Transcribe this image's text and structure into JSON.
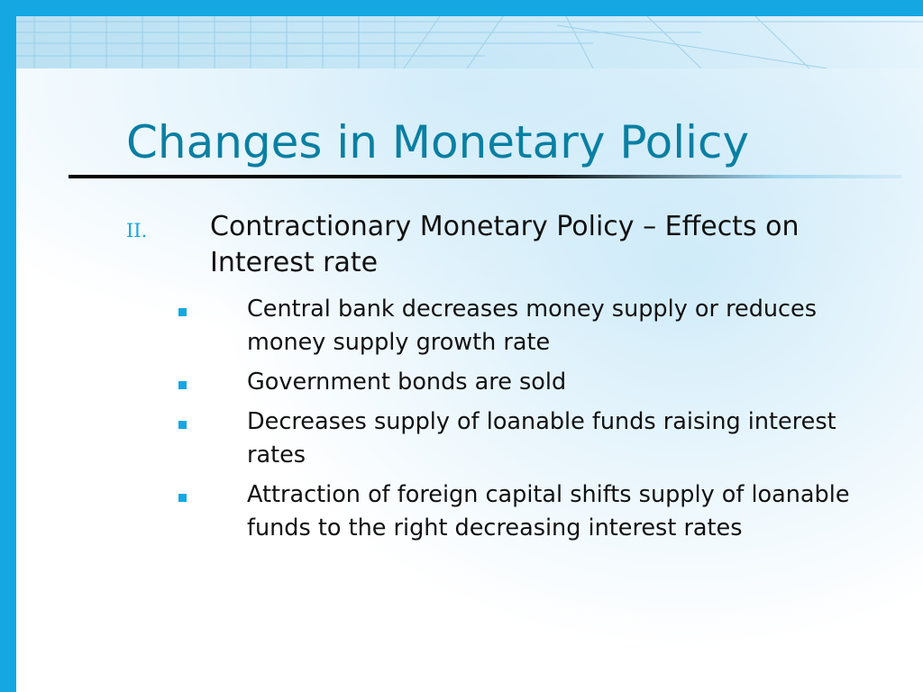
{
  "slide": {
    "title": "Changes in Monetary Policy",
    "level1": {
      "numeral": "II.",
      "text": "Contractionary Monetary Policy – Effects on Interest rate"
    },
    "bullets": [
      "Central bank decreases money supply or reduces money supply growth rate",
      "Government bonds are sold",
      "Decreases supply of loanable funds raising interest rates",
      "Attraction of foreign capital shifts supply of loanable funds to the right decreasing interest rates"
    ]
  },
  "colors": {
    "accent": "#14a7e2",
    "title": "#0a7fa3",
    "text": "#111111"
  }
}
